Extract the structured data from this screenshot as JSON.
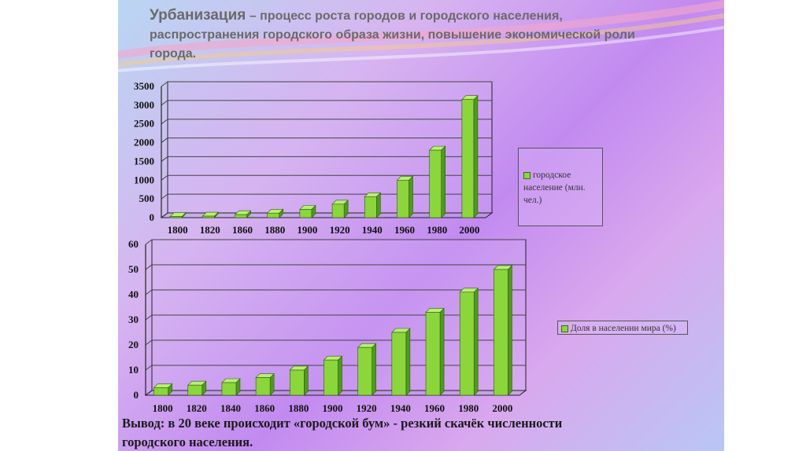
{
  "title": {
    "term": "Урбанизация",
    "dash": " – ",
    "line1_rest": "процесс роста городов и городского населения,",
    "line2": "распространения городского образа жизни, повышение экономической роли",
    "line3": "города."
  },
  "chart_data": [
    {
      "type": "bar",
      "categories": [
        "1800",
        "1820",
        "1860",
        "1880",
        "1900",
        "1920",
        "1940",
        "1960",
        "1980",
        "2000"
      ],
      "values": [
        30,
        40,
        80,
        120,
        220,
        360,
        560,
        1000,
        1800,
        3150
      ],
      "ylim": [
        0,
        3500
      ],
      "yticks": [
        0,
        500,
        1000,
        1500,
        2000,
        2500,
        3000,
        3500
      ],
      "grid": true,
      "legend_position": "right",
      "series": [
        {
          "name": "городское население (млн. чел.)",
          "values": [
            30,
            40,
            80,
            120,
            220,
            360,
            560,
            1000,
            1800,
            3150
          ]
        }
      ]
    },
    {
      "type": "bar",
      "categories": [
        "1800",
        "1820",
        "1840",
        "1860",
        "1880",
        "1900",
        "1920",
        "1940",
        "1960",
        "1980",
        "2000"
      ],
      "values": [
        3,
        4,
        5,
        7,
        10,
        14,
        19,
        25,
        33,
        41,
        50
      ],
      "ylim": [
        0,
        60
      ],
      "yticks": [
        0,
        10,
        20,
        30,
        40,
        50,
        60
      ],
      "grid": true,
      "legend_position": "right",
      "series": [
        {
          "name": "Доля в населении мира (%)",
          "values": [
            3,
            4,
            5,
            7,
            10,
            14,
            19,
            25,
            33,
            41,
            50
          ]
        }
      ]
    }
  ],
  "legend1": {
    "line1": "городское",
    "line2": "население (млн.",
    "line3": "чел.)"
  },
  "legend2": {
    "label": "Доля в населении мира (%)"
  },
  "conclusion": {
    "line1": "Вывод: в 20 веке происходит «городской бум» - резкий скачёк численности",
    "line2": "городского населения."
  },
  "colors": {
    "bar_front": "#8bd63a",
    "bar_top": "#b8ef74",
    "bar_side": "#4f9a1c",
    "grid": "#444444",
    "axis": "#222222"
  }
}
